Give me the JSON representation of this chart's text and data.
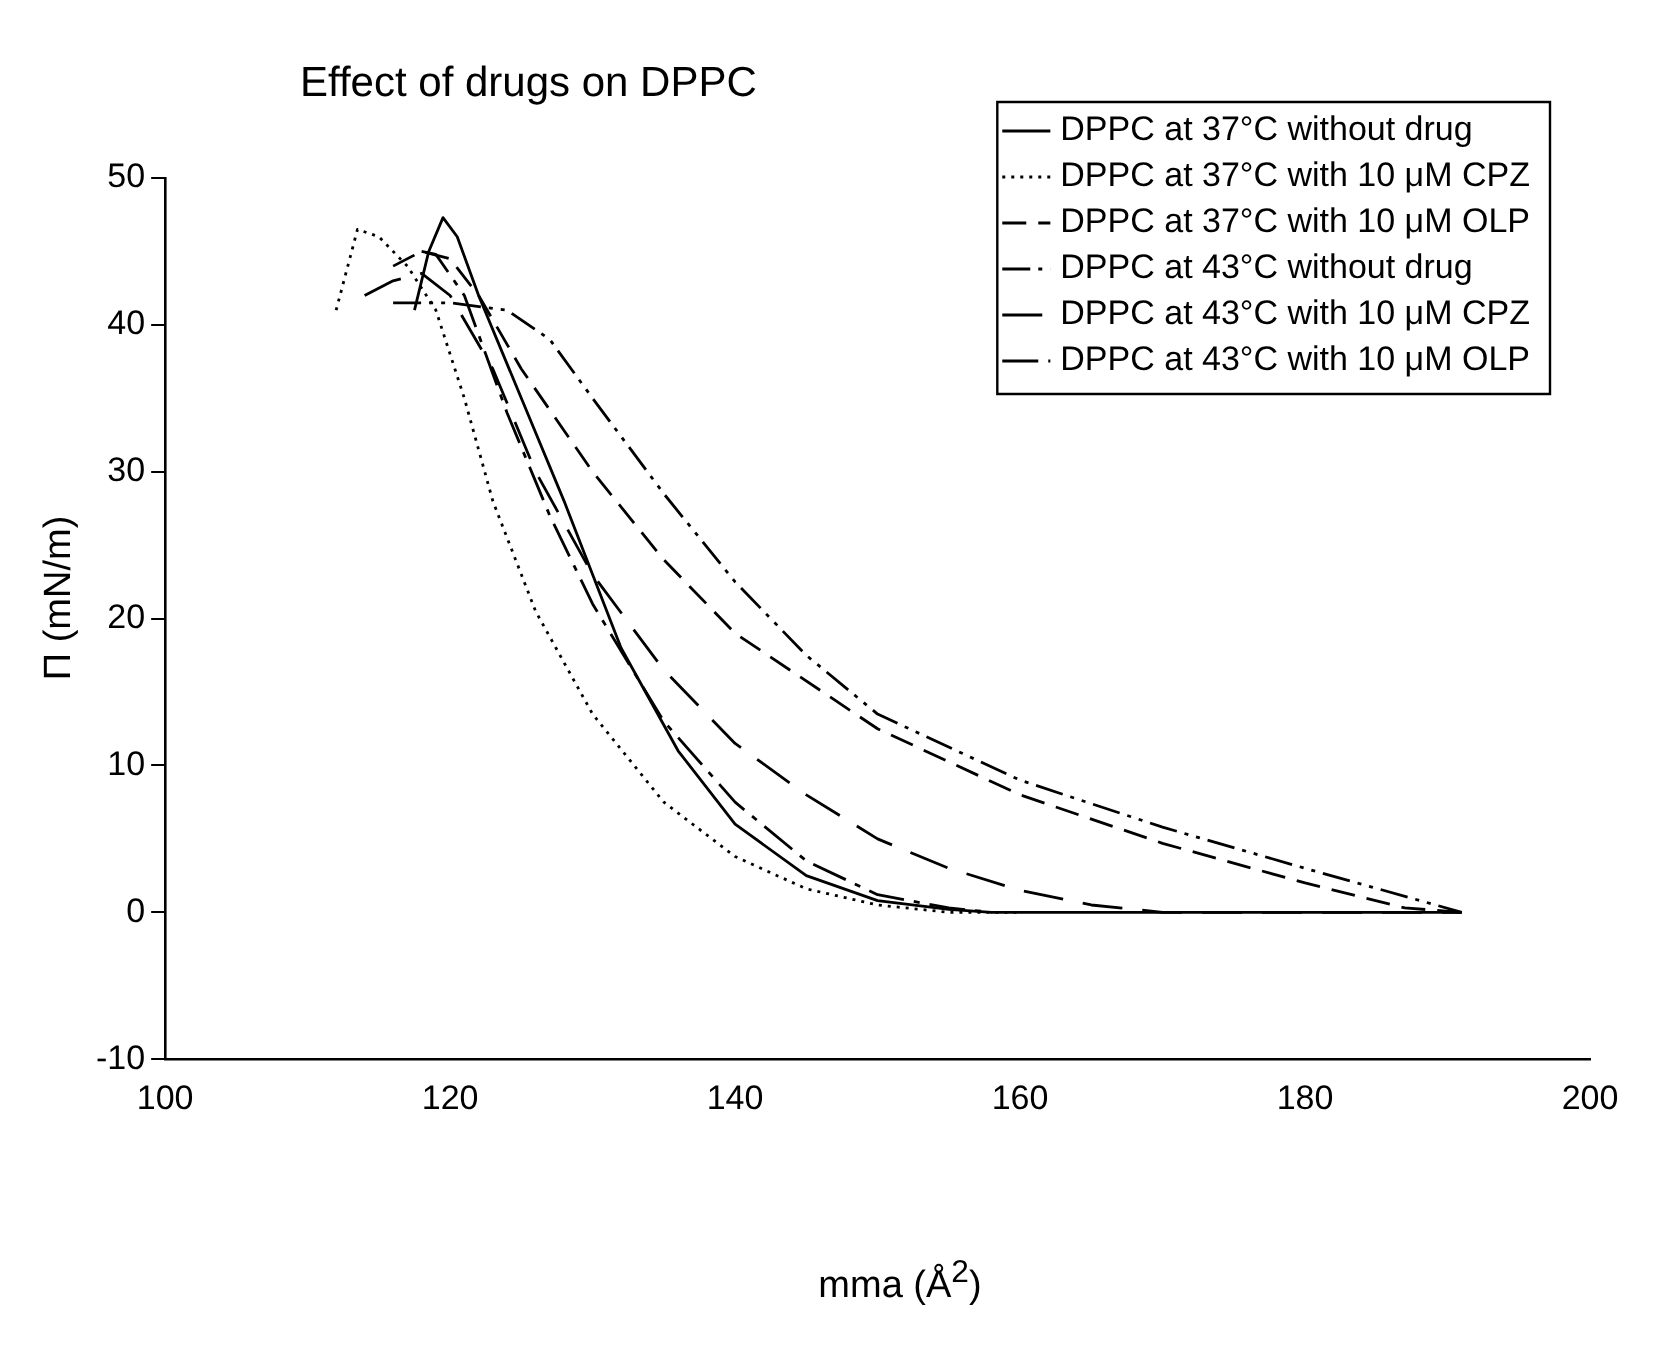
{
  "chart_data": {
    "type": "line",
    "title": "Effect of drugs on DPPC",
    "xlabel": "mma (Å$^{2}$)",
    "ylabel": "Π (mN/m)",
    "xlim": [
      100,
      200
    ],
    "xticks": [
      100,
      120,
      140,
      160,
      180,
      200
    ],
    "ylim": [
      -10,
      50
    ],
    "yticks": [
      -10,
      0,
      10,
      20,
      30,
      40,
      50
    ],
    "grid": false,
    "legend": "top right",
    "marker": "none",
    "series": [
      {
        "name": "DPPC at 37°C without drug",
        "color": "#000000",
        "line_style": "solid",
        "x": [
          117.5,
          118.5,
          119.5,
          120.5,
          122,
          125,
          128,
          132,
          136,
          140,
          145,
          150,
          155,
          158,
          191
        ],
        "values": [
          41,
          45,
          47.3,
          46,
          42,
          35,
          28,
          18,
          11,
          6,
          2.5,
          0.8,
          0.2,
          0,
          0
        ]
      },
      {
        "name": "DPPC at 37°C with 10 μM CPZ",
        "color": "#000000",
        "line_style": "dotted",
        "x": [
          112,
          113.5,
          115,
          117,
          119,
          121,
          123,
          126,
          130,
          135,
          140,
          145,
          150,
          155,
          160
        ],
        "values": [
          41,
          46.5,
          46,
          44,
          41,
          35,
          28,
          20.5,
          13.5,
          7.5,
          3.8,
          1.6,
          0.5,
          0,
          0
        ]
      },
      {
        "name": "DPPC at 37°C with 10 μM OLP",
        "color": "#000000",
        "line_style": "dashed",
        "x": [
          116,
          118,
          120,
          122,
          125,
          130,
          135,
          140,
          150,
          160,
          170,
          180,
          187,
          191
        ],
        "values": [
          44,
          45,
          44.5,
          42,
          37,
          30,
          24,
          19,
          12.5,
          8,
          4.7,
          2,
          0.3,
          0
        ]
      },
      {
        "name": "DPPC at 43°C without drug",
        "color": "#000000",
        "line_style": "dashed",
        "x": [
          116,
          120,
          124,
          127,
          130,
          135,
          140,
          145,
          150,
          160,
          170,
          180,
          191
        ],
        "values": [
          41.5,
          41.5,
          41,
          39,
          35,
          28.5,
          22.5,
          17.5,
          13.5,
          9,
          5.8,
          3,
          0
        ]
      },
      {
        "name": "DPPC at 43°C with 10 μM CPZ",
        "color": "#000000",
        "line_style": "dashed",
        "x": [
          114,
          116,
          118,
          120,
          123,
          126,
          130,
          135,
          140,
          145,
          150,
          155,
          160,
          165,
          170,
          191
        ],
        "values": [
          42,
          43,
          43.5,
          42,
          37,
          30,
          23,
          16.5,
          11.5,
          8,
          5,
          3,
          1.5,
          0.5,
          0,
          0
        ]
      },
      {
        "name": "DPPC at 43°C with 10 μM OLP",
        "color": "#000000",
        "line_style": "dashed",
        "x": [
          118,
          119,
          121,
          124,
          127,
          130,
          135,
          140,
          145,
          150,
          155,
          158
        ],
        "values": [
          45,
          44.8,
          42,
          34,
          27,
          21,
          13,
          7.5,
          3.5,
          1.2,
          0.3,
          0
        ]
      }
    ]
  }
}
